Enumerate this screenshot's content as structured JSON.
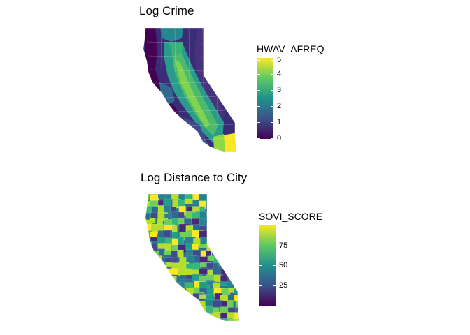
{
  "panels": [
    {
      "title": "Log Crime",
      "legend": {
        "title": "HWAV_AFREQ",
        "ticks": [
          "5",
          "4",
          "3",
          "2",
          "1",
          "0"
        ],
        "colors": [
          "#fde725",
          "#5ec962",
          "#21918c",
          "#3b528b",
          "#440154"
        ]
      }
    },
    {
      "title": "Log Distance to City",
      "legend": {
        "title": "SOVI_SCORE",
        "ticks": [
          "75",
          "50",
          "25"
        ],
        "colors": [
          "#fde725",
          "#5ec962",
          "#21918c",
          "#3b528b",
          "#440154"
        ]
      }
    }
  ],
  "palette": {
    "viridis": [
      "#440154",
      "#482878",
      "#3e4a89",
      "#31688e",
      "#26828e",
      "#1f9e89",
      "#35b779",
      "#6ece58",
      "#b5de2b",
      "#fde725"
    ]
  }
}
